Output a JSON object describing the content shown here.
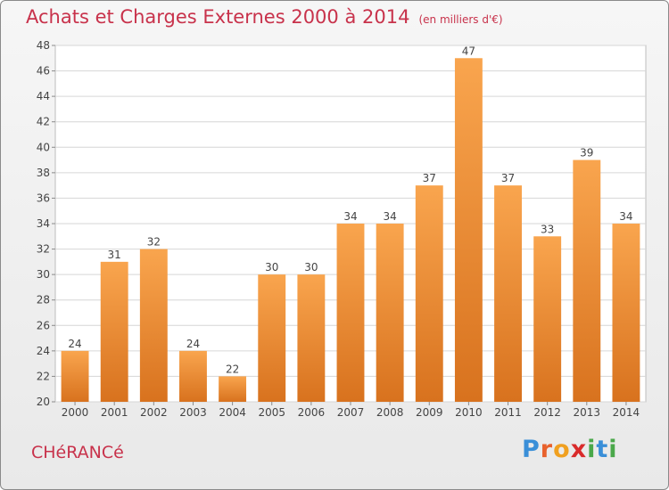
{
  "header": {
    "title": "Achats et Charges Externes 2000 à 2014",
    "unit": "(en milliers d'€)"
  },
  "footer": {
    "commune": "CHéRANCé",
    "brand_letters": [
      "P",
      "r",
      "o",
      "x",
      "i",
      "t",
      "i"
    ],
    "brand_colors": [
      "#3a8fd8",
      "#e8612c",
      "#f0a020",
      "#d92b2b",
      "#4aa84a",
      "#3a8fd8",
      "#4aa84a"
    ]
  },
  "chart_data": {
    "type": "bar",
    "categories": [
      "2000",
      "2001",
      "2002",
      "2003",
      "2004",
      "2005",
      "2006",
      "2007",
      "2008",
      "2009",
      "2010",
      "2011",
      "2012",
      "2013",
      "2014"
    ],
    "values": [
      24,
      31,
      32,
      24,
      22,
      30,
      30,
      34,
      34,
      37,
      47,
      37,
      33,
      39,
      34
    ],
    "title": "Achats et Charges Externes 2000 à 2014",
    "xlabel": "",
    "ylabel": "",
    "ylim": [
      20,
      48
    ],
    "yticks": [
      20,
      22,
      24,
      26,
      28,
      30,
      32,
      34,
      36,
      38,
      40,
      42,
      44,
      46,
      48
    ],
    "grid": true,
    "bar_color_top": "#f9a54e",
    "bar_color_bottom": "#d8721e",
    "label_color": "#444444"
  }
}
